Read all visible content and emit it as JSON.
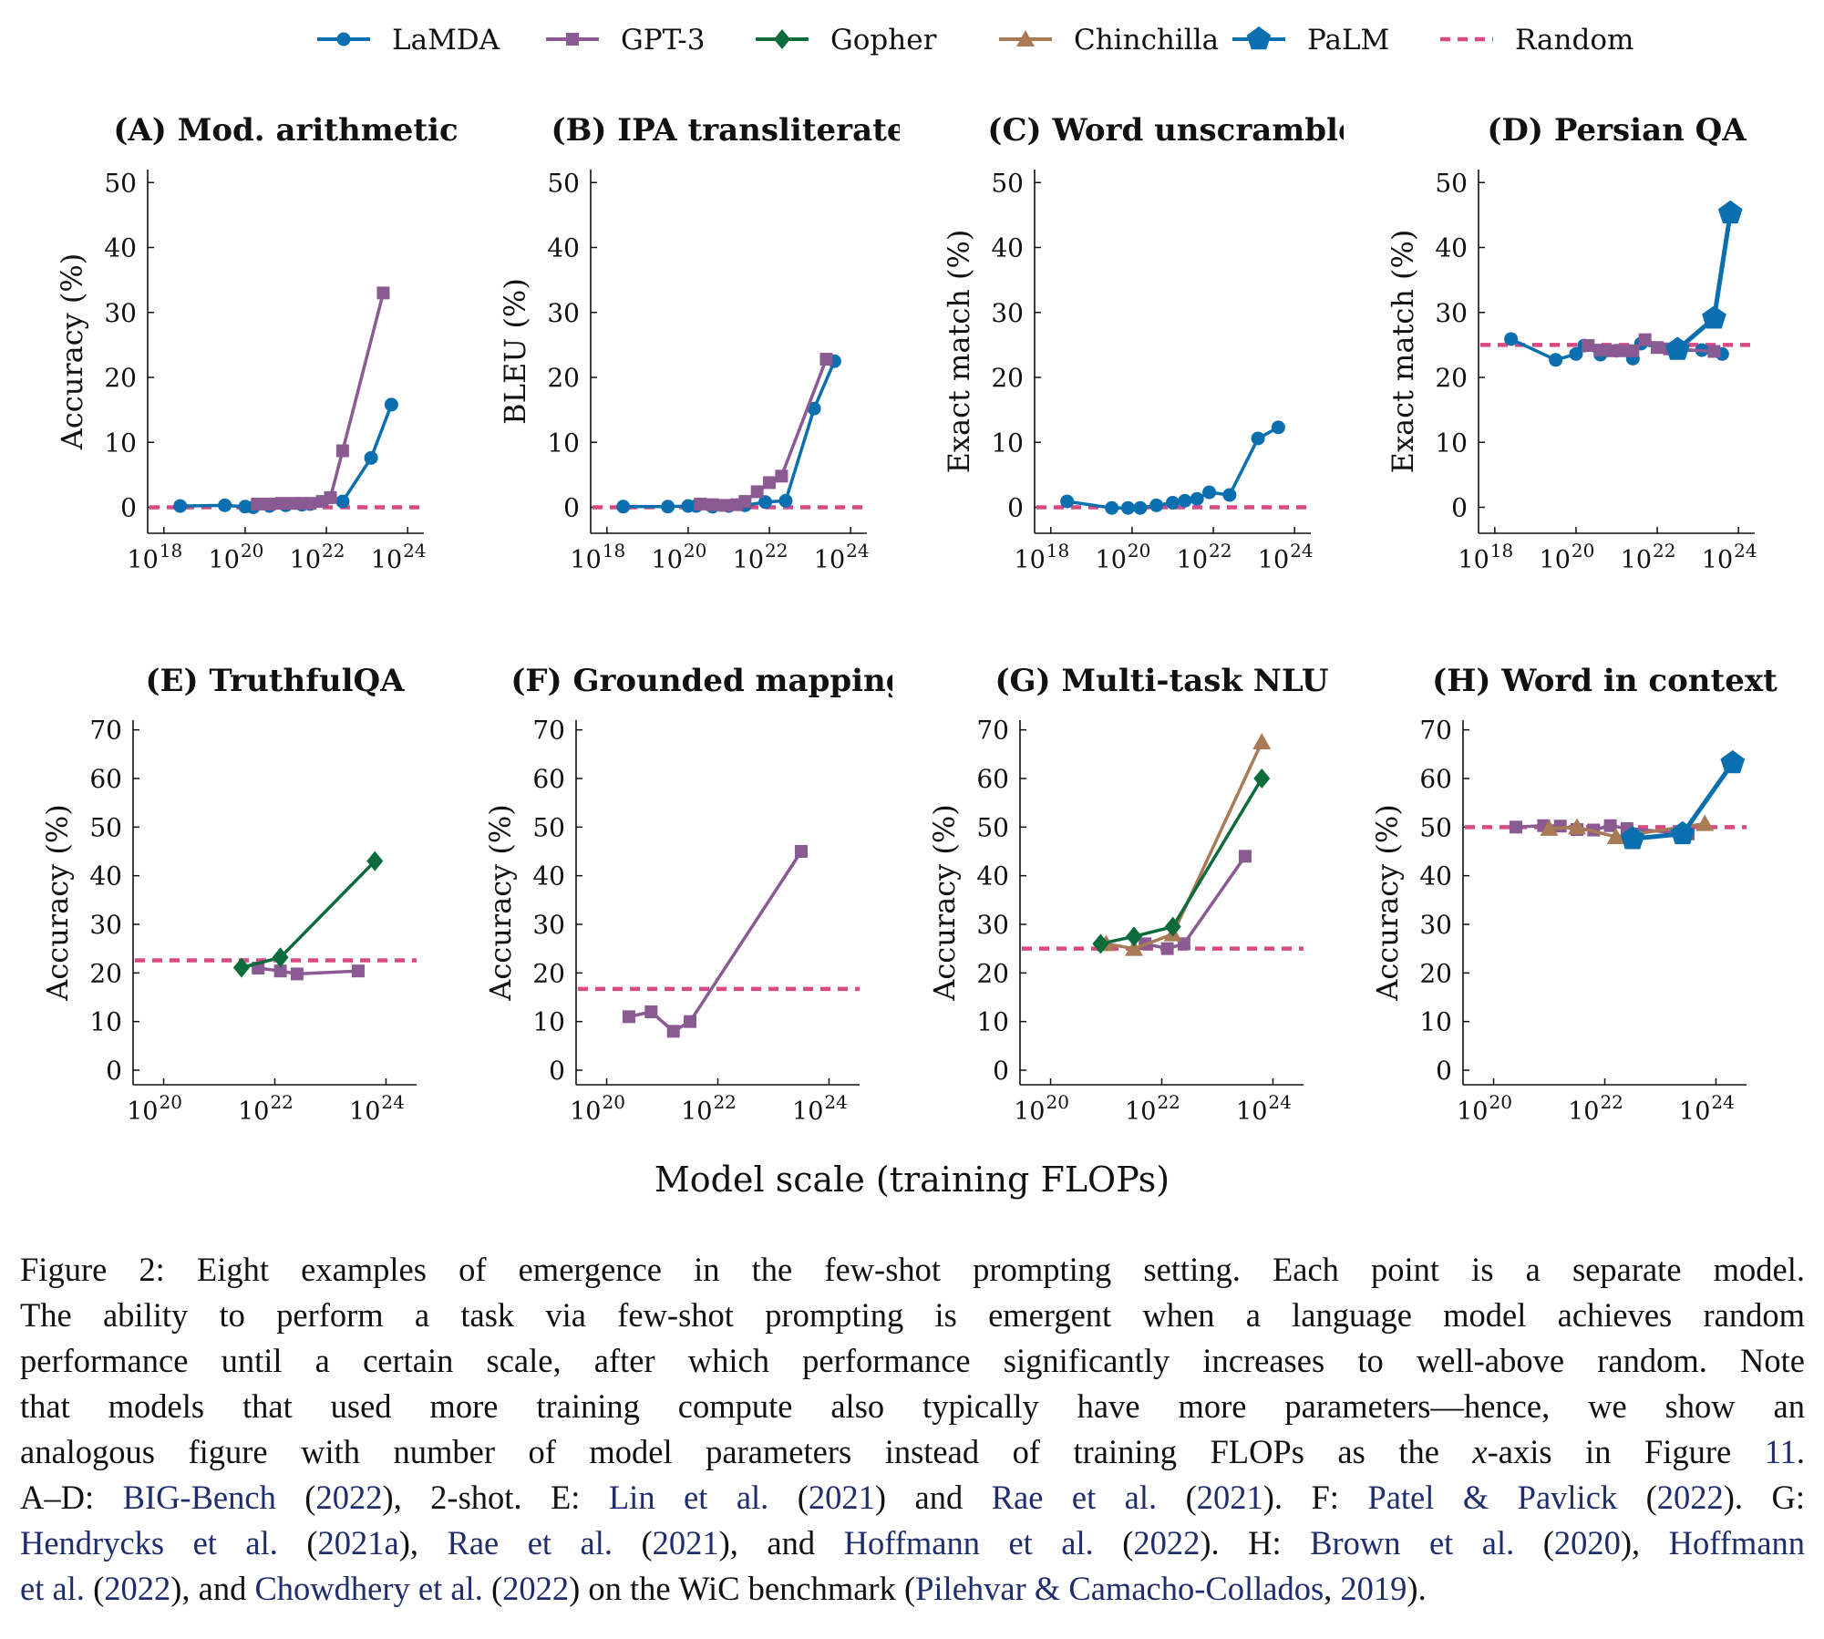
{
  "legend": [
    {
      "name": "LaMDA",
      "color": "#0a6fae",
      "marker": "circle"
    },
    {
      "name": "GPT-3",
      "color": "#8a5a93",
      "marker": "square"
    },
    {
      "name": "Gopher",
      "color": "#0b6b3a",
      "marker": "diamond"
    },
    {
      "name": "Chinchilla",
      "color": "#a97a56",
      "marker": "triangle"
    },
    {
      "name": "PaLM",
      "color": "#0a6fae",
      "marker": "pentagon"
    },
    {
      "name": "Random",
      "color": "#d94a85",
      "marker": "dashed"
    }
  ],
  "xlabel": "Model scale (training FLOPs)",
  "chart_data": [
    {
      "id": "A",
      "type": "line",
      "title": "(A) Mod. arithmetic",
      "ylabel": "Accuracy (%)",
      "ylim": [
        -4,
        52
      ],
      "yticks": [
        0,
        10,
        20,
        30,
        40,
        50
      ],
      "xlim": [
        17.6,
        24.4
      ],
      "xticks": [
        "10",
        "10",
        "10",
        "10"
      ],
      "xtick_exps": [
        "18",
        "20",
        "22",
        "24"
      ],
      "xtick_vals": [
        18,
        20,
        22,
        24
      ],
      "random": 0,
      "series": [
        {
          "name": "LaMDA",
          "x": [
            18.4,
            19.5,
            20.0,
            20.2,
            20.6,
            21.0,
            21.4,
            21.6,
            22.4,
            23.1,
            23.6
          ],
          "y": [
            0.2,
            0.3,
            0.1,
            0.0,
            0.2,
            0.3,
            0.4,
            0.5,
            0.9,
            7.6,
            15.8
          ]
        },
        {
          "name": "GPT-3",
          "x": [
            20.3,
            20.6,
            20.9,
            21.2,
            21.4,
            21.6,
            21.9,
            22.1,
            22.4,
            23.4
          ],
          "y": [
            0.5,
            0.5,
            0.6,
            0.6,
            0.6,
            0.6,
            0.9,
            1.5,
            8.7,
            33.0
          ]
        }
      ]
    },
    {
      "id": "B",
      "type": "line",
      "title": "(B) IPA transliterate",
      "ylabel": "BLEU (%)",
      "ylim": [
        -4,
        52
      ],
      "yticks": [
        0,
        10,
        20,
        30,
        40,
        50
      ],
      "xlim": [
        17.6,
        24.4
      ],
      "xticks": [
        "10",
        "10",
        "10",
        "10"
      ],
      "xtick_exps": [
        "18",
        "20",
        "22",
        "24"
      ],
      "xtick_vals": [
        18,
        20,
        22,
        24
      ],
      "random": 0,
      "series": [
        {
          "name": "LaMDA",
          "x": [
            18.4,
            19.5,
            20.0,
            20.2,
            20.6,
            21.0,
            21.4,
            21.9,
            22.4,
            23.1,
            23.6
          ],
          "y": [
            0.1,
            0.1,
            0.2,
            0.2,
            0.1,
            0.2,
            0.3,
            0.8,
            1.0,
            15.2,
            22.5
          ]
        },
        {
          "name": "GPT-3",
          "x": [
            20.3,
            20.6,
            20.9,
            21.2,
            21.4,
            21.7,
            22.0,
            22.3,
            23.4
          ],
          "y": [
            0.5,
            0.4,
            0.3,
            0.4,
            0.9,
            2.4,
            3.8,
            4.8,
            22.8
          ]
        }
      ]
    },
    {
      "id": "C",
      "type": "line",
      "title": "(C) Word unscramble",
      "ylabel": "Exact match (%)",
      "ylim": [
        -4,
        52
      ],
      "yticks": [
        0,
        10,
        20,
        30,
        40,
        50
      ],
      "xlim": [
        17.6,
        24.4
      ],
      "xticks": [
        "10",
        "10",
        "10",
        "10"
      ],
      "xtick_exps": [
        "18",
        "20",
        "22",
        "24"
      ],
      "xtick_vals": [
        18,
        20,
        22,
        24
      ],
      "random": 0,
      "series": [
        {
          "name": "LaMDA",
          "x": [
            18.4,
            19.5,
            19.9,
            20.2,
            20.6,
            21.0,
            21.3,
            21.6,
            21.9,
            22.4,
            23.1,
            23.6
          ],
          "y": [
            0.9,
            -0.1,
            -0.1,
            -0.1,
            0.3,
            0.7,
            1.0,
            1.3,
            2.3,
            1.9,
            10.6,
            12.3
          ]
        }
      ]
    },
    {
      "id": "D",
      "type": "line",
      "title": "(D) Persian QA",
      "ylabel": "Exact match (%)",
      "ylim": [
        -4,
        52
      ],
      "yticks": [
        0,
        10,
        20,
        30,
        40,
        50
      ],
      "xlim": [
        17.6,
        24.4
      ],
      "xticks": [
        "10",
        "10",
        "10",
        "10"
      ],
      "xtick_exps": [
        "18",
        "20",
        "22",
        "24"
      ],
      "xtick_vals": [
        18,
        20,
        22,
        24
      ],
      "random": 25,
      "series": [
        {
          "name": "LaMDA",
          "x": [
            18.4,
            19.5,
            20.0,
            20.2,
            20.6,
            21.0,
            21.4,
            21.6,
            22.4,
            23.1,
            23.6
          ],
          "y": [
            25.9,
            22.7,
            23.6,
            24.9,
            23.5,
            24.1,
            22.9,
            25.2,
            24.1,
            24.2,
            23.6
          ]
        },
        {
          "name": "GPT-3",
          "x": [
            20.3,
            20.6,
            20.9,
            21.2,
            21.4,
            21.7,
            22.0,
            22.3,
            23.4
          ],
          "y": [
            24.9,
            24.2,
            24.1,
            24.1,
            24.1,
            25.8,
            24.6,
            24.4,
            24.0
          ]
        },
        {
          "name": "PaLM",
          "x": [
            22.5,
            23.4,
            23.8
          ],
          "y": [
            24.3,
            29.1,
            45.3
          ]
        }
      ]
    },
    {
      "id": "E",
      "type": "line",
      "title": "(E) TruthfulQA",
      "ylabel": "Accuracy (%)",
      "ylim": [
        -3,
        72
      ],
      "yticks": [
        0,
        10,
        20,
        30,
        40,
        50,
        60,
        70
      ],
      "xlim": [
        19.45,
        24.55
      ],
      "xticks": [
        "10",
        "10",
        "10"
      ],
      "xtick_exps": [
        "20",
        "22",
        "24"
      ],
      "xtick_vals": [
        20,
        22,
        24
      ],
      "random": 22.6,
      "series": [
        {
          "name": "GPT-3",
          "x": [
            21.7,
            22.1,
            22.4,
            23.5
          ],
          "y": [
            21.0,
            20.4,
            19.8,
            20.4
          ]
        },
        {
          "name": "Gopher",
          "x": [
            21.4,
            22.1,
            23.8
          ],
          "y": [
            21.1,
            23.2,
            43.0
          ]
        }
      ]
    },
    {
      "id": "F",
      "type": "line",
      "title": "(F) Grounded mappings",
      "ylabel": "Accuracy (%)",
      "ylim": [
        -3,
        72
      ],
      "yticks": [
        0,
        10,
        20,
        30,
        40,
        50,
        60,
        70
      ],
      "xlim": [
        19.45,
        24.55
      ],
      "xticks": [
        "10",
        "10",
        "10"
      ],
      "xtick_exps": [
        "20",
        "22",
        "24"
      ],
      "xtick_vals": [
        20,
        22,
        24
      ],
      "random": 16.7,
      "series": [
        {
          "name": "GPT-3",
          "x": [
            20.4,
            20.8,
            21.2,
            21.5,
            23.5
          ],
          "y": [
            11.0,
            12.0,
            8.0,
            10.0,
            45.0
          ]
        }
      ]
    },
    {
      "id": "G",
      "type": "line",
      "title": "(G) Multi-task NLU",
      "ylabel": "Accuracy (%)",
      "ylim": [
        -3,
        72
      ],
      "yticks": [
        0,
        10,
        20,
        30,
        40,
        50,
        60,
        70
      ],
      "xlim": [
        19.45,
        24.55
      ],
      "xticks": [
        "10",
        "10",
        "10"
      ],
      "xtick_exps": [
        "20",
        "22",
        "24"
      ],
      "xtick_vals": [
        20,
        22,
        24
      ],
      "random": 25,
      "series": [
        {
          "name": "GPT-3",
          "x": [
            21.7,
            22.1,
            22.4,
            23.5
          ],
          "y": [
            26.0,
            25.0,
            26.0,
            44.0
          ]
        },
        {
          "name": "Chinchilla",
          "x": [
            21.0,
            21.5,
            22.2,
            23.8
          ],
          "y": [
            26.0,
            25.0,
            28.0,
            67.5
          ]
        },
        {
          "name": "Gopher",
          "x": [
            20.9,
            21.5,
            22.2,
            23.8
          ],
          "y": [
            26.0,
            27.5,
            29.5,
            60.0
          ]
        }
      ]
    },
    {
      "id": "H",
      "type": "line",
      "title": "(H) Word in context",
      "ylabel": "Accuracy (%)",
      "ylim": [
        -3,
        72
      ],
      "yticks": [
        0,
        10,
        20,
        30,
        40,
        50,
        60,
        70
      ],
      "xlim": [
        19.45,
        24.55
      ],
      "xticks": [
        "10",
        "10",
        "10"
      ],
      "xtick_exps": [
        "20",
        "22",
        "24"
      ],
      "xtick_vals": [
        20,
        22,
        24
      ],
      "random": 50,
      "series": [
        {
          "name": "GPT-3",
          "x": [
            20.4,
            20.9,
            21.2,
            21.5,
            21.8,
            22.1,
            22.4,
            23.5
          ],
          "y": [
            50.0,
            50.3,
            50.2,
            49.5,
            49.4,
            50.3,
            49.7,
            48.6
          ]
        },
        {
          "name": "Chinchilla",
          "x": [
            21.0,
            21.5,
            22.2,
            23.8
          ],
          "y": [
            49.7,
            50.0,
            48.0,
            50.7
          ]
        },
        {
          "name": "PaLM",
          "x": [
            22.5,
            23.4,
            24.3
          ],
          "y": [
            47.6,
            48.6,
            63.2
          ]
        }
      ]
    }
  ],
  "caption": {
    "lines": [
      [
        {
          "t": "Figure 2: Eight examples of emergence in the few-shot prompting setting. Each point is a separate model."
        }
      ],
      [
        {
          "t": "The ability to perform a task via few-shot prompting is emergent when a language model achieves random"
        }
      ],
      [
        {
          "t": "performance until a certain scale, after which performance significantly increases to well-above random. Note"
        }
      ],
      [
        {
          "t": "that models that used more training compute also typically have more parameters—hence, we show an"
        }
      ],
      [
        {
          "t": "analogous figure with number of model parameters instead of training FLOPs as the "
        },
        {
          "t": "x",
          "c": "ital"
        },
        {
          "t": "-axis in Figure "
        },
        {
          "t": "11",
          "c": "cite"
        },
        {
          "t": "."
        }
      ],
      [
        {
          "t": "A–D: "
        },
        {
          "t": "BIG-Bench",
          "c": "cite"
        },
        {
          "t": " ("
        },
        {
          "t": "2022",
          "c": "cite"
        },
        {
          "t": "), 2-shot. E: "
        },
        {
          "t": "Lin et al.",
          "c": "cite"
        },
        {
          "t": " ("
        },
        {
          "t": "2021",
          "c": "cite"
        },
        {
          "t": ") and "
        },
        {
          "t": "Rae et al.",
          "c": "cite"
        },
        {
          "t": " ("
        },
        {
          "t": "2021",
          "c": "cite"
        },
        {
          "t": "). F: "
        },
        {
          "t": "Patel & Pavlick",
          "c": "cite"
        },
        {
          "t": " ("
        },
        {
          "t": "2022",
          "c": "cite"
        },
        {
          "t": "). G:"
        }
      ],
      [
        {
          "t": "Hendrycks et al.",
          "c": "cite"
        },
        {
          "t": " ("
        },
        {
          "t": "2021a",
          "c": "cite"
        },
        {
          "t": "), "
        },
        {
          "t": "Rae et al.",
          "c": "cite"
        },
        {
          "t": " ("
        },
        {
          "t": "2021",
          "c": "cite"
        },
        {
          "t": "), and "
        },
        {
          "t": "Hoffmann et al.",
          "c": "cite"
        },
        {
          "t": " ("
        },
        {
          "t": "2022",
          "c": "cite"
        },
        {
          "t": "). H: "
        },
        {
          "t": "Brown et al.",
          "c": "cite"
        },
        {
          "t": " ("
        },
        {
          "t": "2020",
          "c": "cite"
        },
        {
          "t": "), "
        },
        {
          "t": "Hoffmann",
          "c": "cite"
        }
      ],
      [
        {
          "t": "et al.",
          "c": "cite"
        },
        {
          "t": " ("
        },
        {
          "t": "2022",
          "c": "cite"
        },
        {
          "t": "), and "
        },
        {
          "t": "Chowdhery et al.",
          "c": "cite"
        },
        {
          "t": " ("
        },
        {
          "t": "2022",
          "c": "cite"
        },
        {
          "t": ") on the WiC benchmark ("
        },
        {
          "t": "Pilehvar & Camacho-Collados",
          "c": "cite"
        },
        {
          "t": ", "
        },
        {
          "t": "2019",
          "c": "cite"
        },
        {
          "t": ")."
        }
      ]
    ]
  }
}
